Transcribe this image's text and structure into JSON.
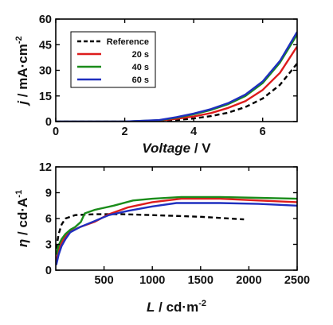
{
  "chart_data": [
    {
      "type": "line",
      "xlabel": {
        "italic": "Voltage",
        "rest": " / V"
      },
      "ylabel": {
        "italic": "j",
        "rest": " / mA·cm",
        "sup": "-2"
      },
      "xlim": [
        0,
        7
      ],
      "ylim": [
        0,
        60
      ],
      "xticks": [
        0,
        2,
        4,
        6
      ],
      "yticks": [
        0,
        15,
        30,
        45,
        60
      ],
      "legend_position": "top-left",
      "series": [
        {
          "name": "Reference",
          "color": "#000000",
          "dash": true,
          "x": [
            0,
            2.0,
            3.0,
            3.5,
            4.0,
            4.5,
            5.0,
            5.5,
            6.0,
            6.5,
            7.0
          ],
          "y": [
            0,
            0,
            0.3,
            0.9,
            1.8,
            3.2,
            5.2,
            8.5,
            13.5,
            21.5,
            34.0
          ]
        },
        {
          "name": "20 s",
          "color": "#dd1c1c",
          "dash": false,
          "x": [
            0,
            2.0,
            3.0,
            3.5,
            4.0,
            4.5,
            5.0,
            5.5,
            6.0,
            6.5,
            7.0
          ],
          "y": [
            0,
            0,
            0.6,
            1.6,
            3.0,
            5.0,
            8.0,
            12.0,
            18.5,
            28.5,
            44.0
          ]
        },
        {
          "name": "40 s",
          "color": "#1a8c1a",
          "dash": false,
          "x": [
            0,
            2.0,
            3.0,
            3.5,
            4.0,
            4.5,
            5.0,
            5.5,
            6.0,
            6.5,
            7.0
          ],
          "y": [
            0,
            0,
            0.8,
            2.3,
            4.3,
            6.8,
            10.2,
            15.0,
            22.5,
            34.5,
            51.0
          ]
        },
        {
          "name": "60 s",
          "color": "#1f2fbf",
          "dash": false,
          "x": [
            0,
            2.0,
            3.0,
            3.5,
            4.0,
            4.5,
            5.0,
            5.5,
            6.0,
            6.5,
            7.0
          ],
          "y": [
            0,
            0,
            0.9,
            2.6,
            4.7,
            7.3,
            10.8,
            15.8,
            23.5,
            35.5,
            52.5
          ]
        }
      ]
    },
    {
      "type": "line",
      "xlabel": {
        "italic": "L",
        "rest": " / cd·m",
        "sup": "-2"
      },
      "ylabel": {
        "italic": "η",
        "rest": " / cd·A",
        "sup": "-1"
      },
      "xlim": [
        0,
        2500
      ],
      "ylim": [
        0,
        12
      ],
      "xticks": [
        500,
        1000,
        1500,
        2000,
        2500
      ],
      "yticks": [
        0,
        3,
        6,
        9,
        12
      ],
      "series": [
        {
          "name": "Reference",
          "color": "#000000",
          "dash": true,
          "x": [
            5,
            30,
            60,
            100,
            200,
            400,
            700,
            1000,
            1500,
            1950
          ],
          "y": [
            2.5,
            4.2,
            5.3,
            6.0,
            6.4,
            6.5,
            6.5,
            6.4,
            6.2,
            5.9
          ]
        },
        {
          "name": "20 s",
          "color": "#dd1c1c",
          "dash": false,
          "x": [
            5,
            30,
            60,
            100,
            150,
            250,
            400,
            550,
            750,
            1000,
            1300,
            1700,
            2100,
            2500
          ],
          "y": [
            1.0,
            2.3,
            3.2,
            3.9,
            4.5,
            5.0,
            5.6,
            6.5,
            7.3,
            7.9,
            8.3,
            8.3,
            8.1,
            7.9
          ]
        },
        {
          "name": "40 s",
          "color": "#1a8c1a",
          "dash": false,
          "x": [
            5,
            30,
            60,
            100,
            150,
            200,
            260,
            300,
            400,
            600,
            800,
            1000,
            1300,
            1700,
            2100,
            2500
          ],
          "y": [
            1.8,
            2.9,
            3.6,
            4.2,
            4.7,
            5.0,
            5.6,
            6.6,
            7.0,
            7.5,
            8.1,
            8.3,
            8.5,
            8.5,
            8.4,
            8.3
          ]
        },
        {
          "name": "60 s",
          "color": "#1f2fbf",
          "dash": false,
          "x": [
            5,
            30,
            60,
            100,
            150,
            250,
            400,
            550,
            750,
            1000,
            1250,
            1700,
            2100,
            2500
          ],
          "y": [
            0.6,
            1.8,
            2.8,
            3.6,
            4.4,
            5.0,
            5.7,
            6.4,
            6.9,
            7.4,
            7.8,
            7.8,
            7.7,
            7.5
          ]
        }
      ]
    }
  ]
}
